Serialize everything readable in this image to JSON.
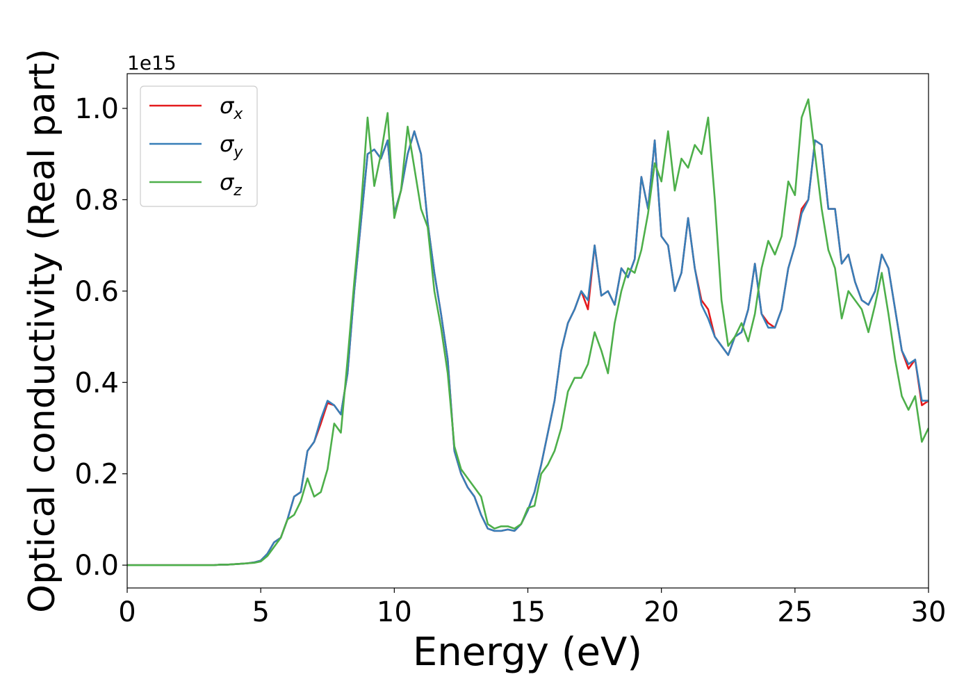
{
  "chart_data": {
    "type": "line",
    "x_label": "Energy (eV)",
    "y_label": "Optical conductivity (Real part)",
    "y_offset_label": "1e15",
    "xlim": [
      0,
      30
    ],
    "ylim": [
      -0.05,
      1.076
    ],
    "xticks": [
      0,
      5,
      10,
      15,
      20,
      25,
      30
    ],
    "yticks": [
      {
        "value": 0,
        "label": "0.0"
      },
      0.2,
      0.4,
      0.6,
      0.8,
      {
        "value": 1,
        "label": "1.0"
      }
    ],
    "grid": false,
    "legend": "upper left",
    "x": [
      0,
      0.25,
      0.5,
      0.75,
      1,
      1.25,
      1.5,
      1.75,
      2,
      2.25,
      2.5,
      2.75,
      3,
      3.25,
      3.5,
      3.75,
      4,
      4.25,
      4.5,
      4.75,
      5,
      5.25,
      5.5,
      5.75,
      6,
      6.25,
      6.5,
      6.75,
      7,
      7.25,
      7.5,
      7.75,
      8,
      8.25,
      8.5,
      8.75,
      9,
      9.25,
      9.5,
      9.75,
      10,
      10.25,
      10.5,
      10.75,
      11,
      11.25,
      11.5,
      11.75,
      12,
      12.25,
      12.5,
      12.75,
      13,
      13.25,
      13.5,
      13.75,
      14,
      14.25,
      14.5,
      14.75,
      15,
      15.25,
      15.5,
      15.75,
      16,
      16.25,
      16.5,
      16.75,
      17,
      17.25,
      17.5,
      17.75,
      18,
      18.25,
      18.5,
      18.75,
      19,
      19.25,
      19.5,
      19.75,
      20,
      20.25,
      20.5,
      20.75,
      21,
      21.25,
      21.5,
      21.75,
      22,
      22.25,
      22.5,
      22.75,
      23,
      23.25,
      23.5,
      23.75,
      24,
      24.25,
      24.5,
      24.75,
      25,
      25.25,
      25.5,
      25.75,
      26,
      26.25,
      26.5,
      26.75,
      27,
      27.25,
      27.5,
      27.75,
      28,
      28.25,
      28.5,
      28.75,
      29,
      29.25,
      29.5,
      29.75,
      30
    ],
    "series": [
      {
        "name": "σx",
        "color": "#e41a1c",
        "values": [
          0,
          0,
          0,
          0,
          0,
          0,
          0,
          0,
          0,
          0,
          0,
          0,
          0,
          0,
          0.001,
          0.001,
          0.002,
          0.003,
          0.004,
          0.006,
          0.01,
          0.025,
          0.05,
          0.06,
          0.1,
          0.15,
          0.16,
          0.25,
          0.27,
          0.31,
          0.355,
          0.35,
          0.33,
          0.42,
          0.6,
          0.75,
          0.9,
          0.91,
          0.89,
          0.93,
          0.77,
          0.82,
          0.9,
          0.95,
          0.9,
          0.75,
          0.64,
          0.55,
          0.45,
          0.25,
          0.2,
          0.17,
          0.15,
          0.11,
          0.08,
          0.075,
          0.075,
          0.078,
          0.075,
          0.09,
          0.12,
          0.16,
          0.22,
          0.29,
          0.36,
          0.47,
          0.53,
          0.56,
          0.6,
          0.56,
          0.7,
          0.59,
          0.6,
          0.57,
          0.65,
          0.63,
          0.67,
          0.85,
          0.78,
          0.93,
          0.72,
          0.7,
          0.6,
          0.64,
          0.76,
          0.65,
          0.58,
          0.56,
          0.5,
          0.48,
          0.46,
          0.5,
          0.51,
          0.56,
          0.66,
          0.55,
          0.53,
          0.52,
          0.56,
          0.65,
          0.7,
          0.78,
          0.8,
          0.93,
          0.92,
          0.78,
          0.78,
          0.66,
          0.68,
          0.62,
          0.58,
          0.57,
          0.6,
          0.68,
          0.65,
          0.56,
          0.47,
          0.43,
          0.45,
          0.35,
          0.36
        ]
      },
      {
        "name": "σy",
        "color": "#377eb8",
        "values": [
          0,
          0,
          0,
          0,
          0,
          0,
          0,
          0,
          0,
          0,
          0,
          0,
          0,
          0,
          0.001,
          0.001,
          0.002,
          0.003,
          0.004,
          0.006,
          0.01,
          0.025,
          0.05,
          0.06,
          0.1,
          0.15,
          0.16,
          0.25,
          0.27,
          0.32,
          0.36,
          0.35,
          0.33,
          0.42,
          0.6,
          0.75,
          0.9,
          0.91,
          0.89,
          0.93,
          0.77,
          0.82,
          0.9,
          0.95,
          0.9,
          0.75,
          0.64,
          0.55,
          0.45,
          0.25,
          0.2,
          0.17,
          0.15,
          0.11,
          0.08,
          0.075,
          0.075,
          0.078,
          0.075,
          0.09,
          0.12,
          0.16,
          0.22,
          0.29,
          0.36,
          0.47,
          0.53,
          0.56,
          0.6,
          0.58,
          0.7,
          0.59,
          0.6,
          0.57,
          0.65,
          0.63,
          0.67,
          0.85,
          0.78,
          0.93,
          0.72,
          0.7,
          0.6,
          0.64,
          0.76,
          0.65,
          0.57,
          0.54,
          0.5,
          0.48,
          0.46,
          0.5,
          0.51,
          0.56,
          0.66,
          0.55,
          0.52,
          0.52,
          0.56,
          0.65,
          0.7,
          0.77,
          0.8,
          0.93,
          0.92,
          0.78,
          0.78,
          0.66,
          0.68,
          0.62,
          0.58,
          0.57,
          0.6,
          0.68,
          0.65,
          0.56,
          0.47,
          0.44,
          0.45,
          0.36,
          0.36
        ]
      },
      {
        "name": "σz",
        "color": "#4daf4a",
        "values": [
          0,
          0,
          0,
          0,
          0,
          0,
          0,
          0,
          0,
          0,
          0,
          0,
          0,
          0,
          0.001,
          0.001,
          0.002,
          0.003,
          0.004,
          0.005,
          0.008,
          0.02,
          0.04,
          0.06,
          0.1,
          0.11,
          0.14,
          0.19,
          0.15,
          0.16,
          0.21,
          0.31,
          0.29,
          0.45,
          0.62,
          0.78,
          0.98,
          0.83,
          0.9,
          0.99,
          0.76,
          0.82,
          0.96,
          0.87,
          0.78,
          0.74,
          0.6,
          0.52,
          0.42,
          0.26,
          0.21,
          0.19,
          0.17,
          0.15,
          0.09,
          0.08,
          0.085,
          0.085,
          0.08,
          0.09,
          0.125,
          0.13,
          0.2,
          0.22,
          0.25,
          0.3,
          0.38,
          0.41,
          0.41,
          0.44,
          0.51,
          0.47,
          0.42,
          0.53,
          0.6,
          0.65,
          0.64,
          0.69,
          0.77,
          0.88,
          0.84,
          0.95,
          0.82,
          0.89,
          0.87,
          0.92,
          0.9,
          0.98,
          0.8,
          0.58,
          0.48,
          0.5,
          0.53,
          0.49,
          0.55,
          0.65,
          0.71,
          0.68,
          0.72,
          0.84,
          0.81,
          0.98,
          1.02,
          0.9,
          0.78,
          0.69,
          0.65,
          0.54,
          0.6,
          0.58,
          0.56,
          0.51,
          0.57,
          0.64,
          0.55,
          0.45,
          0.37,
          0.34,
          0.37,
          0.27,
          0.3
        ]
      }
    ]
  }
}
